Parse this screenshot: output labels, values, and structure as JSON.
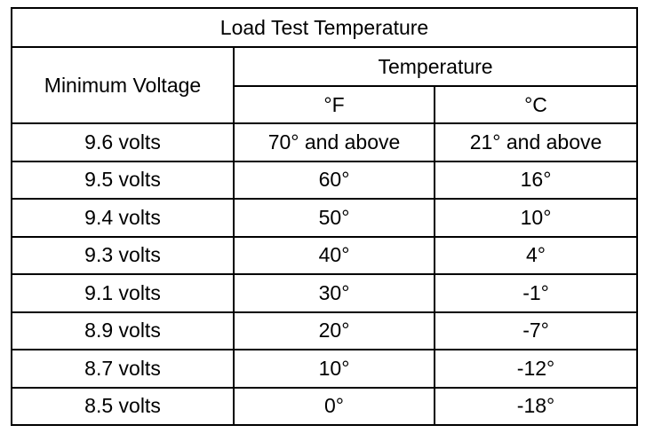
{
  "table": {
    "title": "Load Test Temperature",
    "header": {
      "voltage": "Minimum Voltage",
      "group": "Temperature",
      "units": [
        "°F",
        "°C"
      ]
    },
    "rows": [
      [
        "9.6 volts",
        "70° and above",
        "21° and above"
      ],
      [
        "9.5 volts",
        "60°",
        "16°"
      ],
      [
        "9.4 volts",
        "50°",
        "10°"
      ],
      [
        "9.3 volts",
        "40°",
        "4°"
      ],
      [
        "9.1 volts",
        "30°",
        "-1°"
      ],
      [
        "8.9 volts",
        "20°",
        "-7°"
      ],
      [
        "8.7 volts",
        "10°",
        "-12°"
      ],
      [
        "8.5 volts",
        "0°",
        "-18°"
      ]
    ]
  }
}
